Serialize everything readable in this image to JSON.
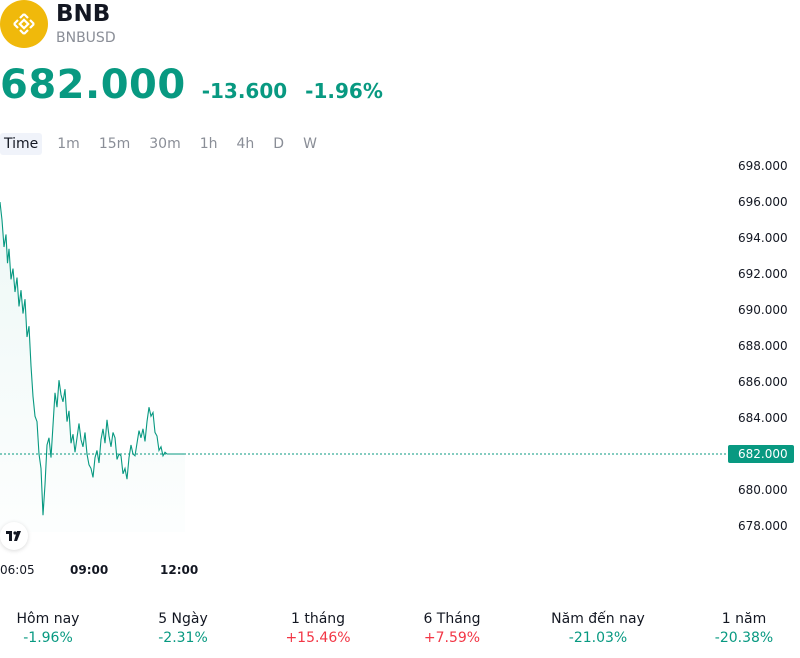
{
  "header": {
    "symbol": "BNB",
    "ticker": "BNBUSD",
    "logo_icon": "bnb-logo-icon",
    "brand_color": "#F0B90B"
  },
  "quote": {
    "price": "682.000",
    "change": "-13.600",
    "change_pct": "-1.96%",
    "color": "#089981"
  },
  "intervals": [
    {
      "label": "Time",
      "active": true
    },
    {
      "label": "1m",
      "active": false
    },
    {
      "label": "15m",
      "active": false
    },
    {
      "label": "30m",
      "active": false
    },
    {
      "label": "1h",
      "active": false
    },
    {
      "label": "4h",
      "active": false
    },
    {
      "label": "D",
      "active": false
    },
    {
      "label": "W",
      "active": false
    }
  ],
  "chart_data": {
    "type": "area",
    "y_tick_labels": [
      "698.000",
      "696.000",
      "694.000",
      "692.000",
      "690.000",
      "688.000",
      "686.000",
      "684.000",
      "682.000",
      "680.000",
      "678.000"
    ],
    "y_ticks": [
      698,
      696,
      694,
      692,
      690,
      688,
      686,
      684,
      682,
      680,
      678
    ],
    "ylim": [
      677.5,
      698.3
    ],
    "x_tick_labels": [
      "06:05",
      "09:00",
      "12:00"
    ],
    "current_price": 682.0,
    "current_price_label": "682.000",
    "line_color": "#089981",
    "x_minutes": [
      0,
      4,
      8,
      12,
      15,
      18,
      22,
      26,
      30,
      34,
      38,
      42,
      46,
      50,
      54,
      58,
      62,
      66,
      70,
      74,
      78,
      82,
      86,
      90,
      94,
      98,
      102,
      106,
      110,
      114,
      118,
      122,
      126,
      130,
      134,
      138,
      142,
      146,
      150,
      154,
      158,
      162,
      166,
      170,
      174,
      178,
      182,
      186,
      190,
      194,
      198,
      202,
      206,
      210,
      214,
      218,
      222,
      226,
      230,
      234,
      238,
      242,
      246,
      250,
      254,
      258,
      262,
      266,
      270,
      274,
      278,
      282,
      286,
      290,
      294,
      298,
      302,
      306,
      310,
      314,
      318,
      322,
      326,
      330,
      334,
      338,
      342,
      346,
      350,
      354,
      358,
      362,
      366,
      370
    ],
    "values": [
      696.0,
      695.0,
      693.5,
      694.2,
      692.6,
      693.4,
      691.7,
      692.3,
      691.0,
      691.8,
      690.2,
      691.1,
      689.8,
      690.6,
      688.5,
      689.1,
      686.9,
      685.2,
      684.1,
      683.8,
      682.0,
      681.2,
      678.6,
      680.3,
      682.5,
      682.9,
      681.8,
      683.6,
      685.4,
      684.6,
      686.1,
      685.3,
      684.9,
      685.6,
      683.8,
      684.4,
      682.6,
      683.1,
      682.1,
      682.9,
      683.7,
      682.8,
      682.4,
      683.2,
      682.0,
      681.4,
      681.2,
      680.7,
      681.8,
      682.2,
      681.5,
      682.8,
      683.4,
      682.6,
      683.9,
      683.0,
      682.4,
      683.2,
      682.9,
      681.7,
      682.0,
      681.9,
      680.9,
      681.2,
      680.6,
      681.8,
      682.5,
      682.0,
      681.9,
      682.6,
      683.3,
      682.9,
      683.4,
      682.7,
      683.8,
      684.6,
      684.1,
      684.3,
      683.2,
      683.0,
      682.2,
      682.4,
      681.9,
      682.1,
      682.0,
      682.0,
      682.0,
      682.0,
      682.0,
      682.0,
      682.0,
      682.0,
      682.0,
      682.0
    ]
  },
  "performance": [
    {
      "label": "Hôm nay",
      "value": "-1.96%",
      "trend": "neg"
    },
    {
      "label": "5 Ngày",
      "value": "-2.31%",
      "trend": "neg"
    },
    {
      "label": "1 tháng",
      "value": "+15.46%",
      "trend": "pos"
    },
    {
      "label": "6 Tháng",
      "value": "+7.59%",
      "trend": "pos"
    },
    {
      "label": "Năm đến nay",
      "value": "-21.03%",
      "trend": "neg"
    },
    {
      "label": "1 năm",
      "value": "-20.38%",
      "trend": "neg"
    }
  ]
}
